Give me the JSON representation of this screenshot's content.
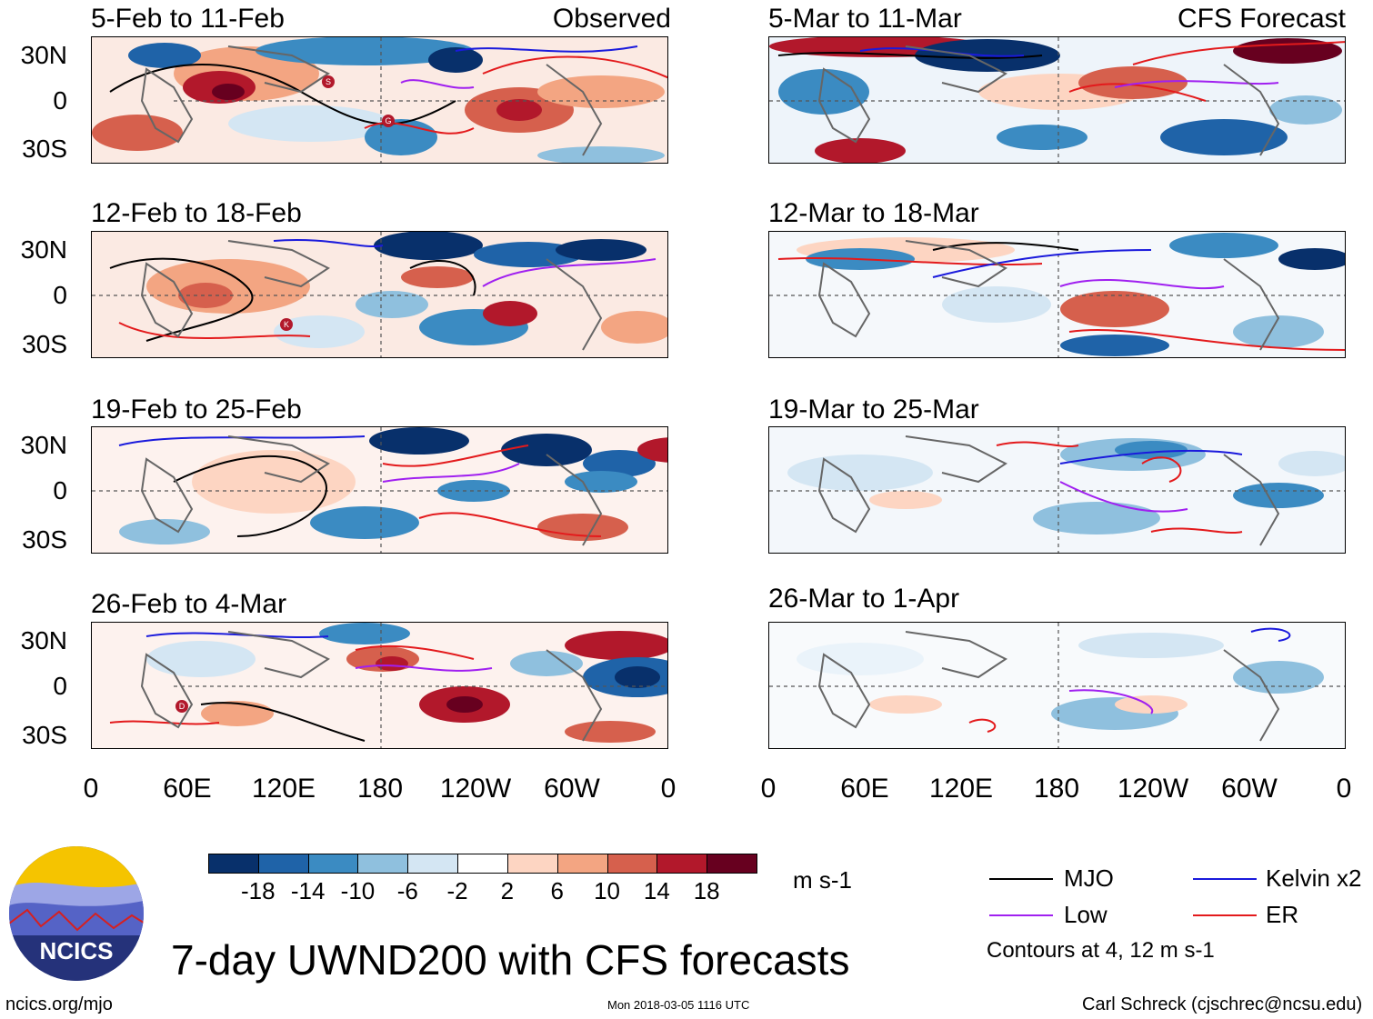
{
  "observed_label": "Observed",
  "forecast_label": "CFS Forecast",
  "panels_left": [
    {
      "title": "5-Feb to 11-Feb"
    },
    {
      "title": "12-Feb to 18-Feb"
    },
    {
      "title": "19-Feb to 25-Feb"
    },
    {
      "title": "26-Feb to 4-Mar"
    }
  ],
  "panels_right": [
    {
      "title": "5-Mar to 11-Mar"
    },
    {
      "title": "12-Mar to 18-Mar"
    },
    {
      "title": "19-Mar to 25-Mar"
    },
    {
      "title": "26-Mar to 1-Apr"
    }
  ],
  "y_labels": [
    "30N",
    "0",
    "30S"
  ],
  "x_labels": [
    "0",
    "60E",
    "120E",
    "180",
    "120W",
    "60W",
    "0"
  ],
  "colorbar": {
    "labels": [
      "-18",
      "-14",
      "-10",
      "-6",
      "-2",
      "2",
      "6",
      "10",
      "14",
      "18"
    ],
    "colors": [
      "#08306b",
      "#1f63a8",
      "#3b8bc2",
      "#8fc0de",
      "#d4e6f3",
      "#ffffff",
      "#fdd5c2",
      "#f3a582",
      "#d6604d",
      "#b2182b",
      "#67001f"
    ],
    "units": "m s-1"
  },
  "legend": {
    "mjo": "MJO",
    "kelvin": "Kelvin x2",
    "low": "Low",
    "er": "ER",
    "contours_note": "Contours at 4, 12 m s-1",
    "colors": {
      "mjo": "#000000",
      "kelvin": "#1a1adc",
      "low": "#a020f0",
      "er": "#e31a1c"
    }
  },
  "storm_markers": [
    "S",
    "G",
    "K",
    "D"
  ],
  "main_title": "7-day UWND200 with CFS forecasts",
  "logo_text": "NCICS",
  "footer": {
    "url": "ncics.org/mjo",
    "timestamp": "Mon 2018-03-05 1116 UTC",
    "author": "Carl Schreck (cjschrec@ncsu.edu)"
  }
}
